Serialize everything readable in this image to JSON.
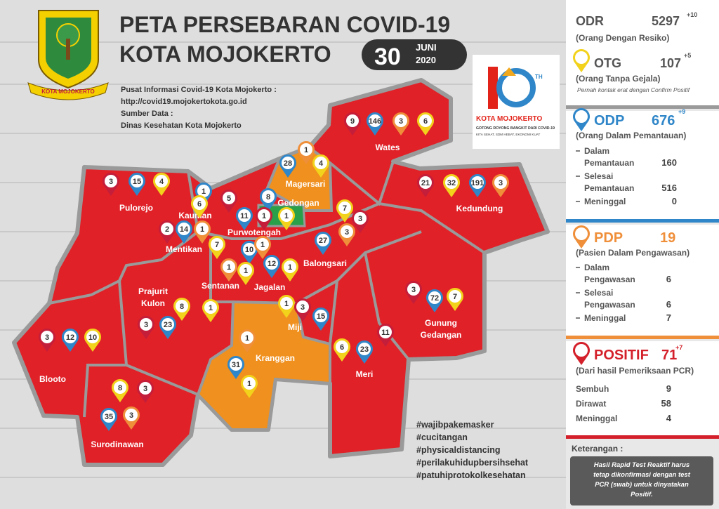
{
  "header": {
    "title": "PETA PERSEBARAN COVID-19",
    "subtitle": "KOTA MOJOKERTO",
    "date": {
      "day": "30",
      "month": "JUNI",
      "year": "2020"
    }
  },
  "logo": {
    "label": "KOTA MOJOKERTO"
  },
  "anniversary": {
    "th": "TH",
    "city": "KOTA MOJOKERTO",
    "tagline": "GOTONG ROYONG BANGKIT DARI COVID-19",
    "motto": "KITA SEHAT, SDM HEBAT, EKONOMI KUAT"
  },
  "info": {
    "center": "Pusat Informasi Covid-19 Kota Mojokerto :",
    "url": "http://covid19.mojokertokota.go.id",
    "source_label": "Sumber Data :",
    "source": "Dinas Kesehatan Kota Mojokerto"
  },
  "stats": {
    "odr": {
      "label": "ODR",
      "value": 5297,
      "change": "+10",
      "description": "(Orang Dengan Resiko)"
    },
    "otg": {
      "label": "OTG",
      "value": 107,
      "change": "+5",
      "description": "(Orang Tanpa Gejala)",
      "note": "Pernah kontak erat dengan Confirm Positif",
      "color": "#f2d21b"
    },
    "odp": {
      "label": "ODP",
      "value": 676,
      "change": "+9",
      "description": "(Orang Dalam Pemantauan)",
      "color": "#2f86c8",
      "items": [
        {
          "label": [
            "Dalam",
            "Pemantauan"
          ],
          "value": 160
        },
        {
          "label": [
            "Selesai",
            "Pemantauan"
          ],
          "value": 516
        },
        {
          "label": [
            "Meninggal"
          ],
          "value": 0
        }
      ]
    },
    "pdp": {
      "label": "PDP",
      "value": 19,
      "description": "(Pasien Dalam Pengawasan)",
      "color": "#ef8f3a",
      "items": [
        {
          "label": [
            "Dalam",
            "Pengawasan"
          ],
          "value": 6
        },
        {
          "label": [
            "Selesai",
            "Pengawasan"
          ],
          "value": 6
        },
        {
          "label": [
            "Meninggal"
          ],
          "value": 7
        }
      ]
    },
    "positif": {
      "label": "POSITIF",
      "value": 71,
      "change": "+7",
      "description": "(Dari hasil Pemeriksaan PCR)",
      "color": "#d4202a",
      "items": [
        {
          "label": [
            "Sembuh"
          ],
          "value": 9
        },
        {
          "label": [
            "Dirawat"
          ],
          "value": 58
        },
        {
          "label": [
            "Meninggal"
          ],
          "value": 4
        }
      ]
    }
  },
  "regions": [
    {
      "name": [
        "Wates"
      ],
      "pins": [
        {
          "value": 9,
          "color": "#c41e3a"
        },
        {
          "value": 146,
          "color": "#2f86c8"
        },
        {
          "value": 3,
          "color": "#ef8f3a"
        },
        {
          "value": 6,
          "color": "#f2d21b"
        }
      ]
    },
    {
      "name": [
        "Magersari"
      ],
      "pins": [
        {
          "value": 28,
          "color": "#2f86c8"
        },
        {
          "value": 1,
          "color": "#ef8f3a"
        },
        {
          "value": 4,
          "color": "#f2d21b"
        }
      ]
    },
    {
      "name": [
        "Gedongan"
      ],
      "pins": [
        {
          "value": 8,
          "color": "#2f86c8"
        }
      ]
    },
    {
      "name": [
        "Kedundung"
      ],
      "pins": [
        {
          "value": 21,
          "color": "#c41e3a"
        },
        {
          "value": 32,
          "color": "#f2d21b"
        },
        {
          "value": 191,
          "color": "#2f86c8"
        },
        {
          "value": 3,
          "color": "#ef8f3a"
        }
      ]
    },
    {
      "name": [
        "Pulorejo"
      ],
      "pins": [
        {
          "value": 3,
          "color": "#c41e3a"
        },
        {
          "value": 15,
          "color": "#2f86c8"
        },
        {
          "value": 4,
          "color": "#f2d21b"
        }
      ]
    },
    {
      "name": [
        "Kauman"
      ],
      "pins": [
        {
          "value": 1,
          "color": "#2f86c8"
        },
        {
          "value": 6,
          "color": "#f2d21b"
        },
        {
          "value": 5,
          "color": "#c41e3a"
        }
      ]
    },
    {
      "name": [
        "Purwotengah"
      ],
      "pins": [
        {
          "value": 11,
          "color": "#2f86c8"
        },
        {
          "value": 1,
          "color": "#c41e3a"
        },
        {
          "value": 1,
          "color": "#f2d21b"
        }
      ]
    },
    {
      "name": [
        "Mentikan"
      ],
      "pins": [
        {
          "value": 2,
          "color": "#c41e3a"
        },
        {
          "value": 14,
          "color": "#2f86c8"
        },
        {
          "value": 1,
          "color": "#ef8f3a"
        }
      ]
    },
    {
      "name": [
        "Sentanan"
      ],
      "pins": [
        {
          "value": 7,
          "color": "#f2d21b"
        },
        {
          "value": 10,
          "color": "#2f86c8"
        },
        {
          "value": 1,
          "color": "#ef8f3a"
        },
        {
          "value": 1,
          "color": "#ef8f3a"
        },
        {
          "value": 1,
          "color": "#f2d21b"
        }
      ]
    },
    {
      "name": [
        "Jagalan"
      ],
      "pins": [
        {
          "value": 12,
          "color": "#2f86c8"
        },
        {
          "value": 1,
          "color": "#f2d21b"
        }
      ]
    },
    {
      "name": [
        "Balongsari"
      ],
      "pins": [
        {
          "value": 7,
          "color": "#f2d21b"
        },
        {
          "value": 3,
          "color": "#c41e3a"
        },
        {
          "value": 27,
          "color": "#2f86c8"
        },
        {
          "value": 3,
          "color": "#ef8f3a"
        }
      ]
    },
    {
      "name": [
        "Prajurit",
        "Kulon"
      ],
      "pins": [
        {
          "value": 8,
          "color": "#f2d21b"
        },
        {
          "value": 3,
          "color": "#c41e3a"
        },
        {
          "value": 23,
          "color": "#2f86c8"
        },
        {
          "value": 1,
          "color": "#f2d21b"
        }
      ]
    },
    {
      "name": [
        "Miji"
      ],
      "pins": [
        {
          "value": 1,
          "color": "#f2d21b"
        },
        {
          "value": 3,
          "color": "#c41e3a"
        },
        {
          "value": 15,
          "color": "#2f86c8"
        }
      ]
    },
    {
      "name": [
        "Gunung",
        "Gedangan"
      ],
      "pins": [
        {
          "value": 3,
          "color": "#c41e3a"
        },
        {
          "value": 72,
          "color": "#2f86c8"
        },
        {
          "value": 7,
          "color": "#f2d21b"
        },
        {
          "value": 11,
          "color": "#c41e3a"
        }
      ]
    },
    {
      "name": [
        "Meri"
      ],
      "pins": [
        {
          "value": 6,
          "color": "#f2d21b"
        },
        {
          "value": 23,
          "color": "#2f86c8"
        }
      ]
    },
    {
      "name": [
        "Kranggan"
      ],
      "pins": [
        {
          "value": 1,
          "color": "#ef8f3a"
        },
        {
          "value": 31,
          "color": "#2f86c8"
        },
        {
          "value": 1,
          "color": "#f2d21b"
        }
      ]
    },
    {
      "name": [
        "Blooto"
      ],
      "pins": [
        {
          "value": 3,
          "color": "#c41e3a"
        },
        {
          "value": 12,
          "color": "#2f86c8"
        },
        {
          "value": 10,
          "color": "#f2d21b"
        }
      ]
    },
    {
      "name": [
        "Surodinawan"
      ],
      "pins": [
        {
          "value": 8,
          "color": "#f2d21b"
        },
        {
          "value": 3,
          "color": "#c41e3a"
        },
        {
          "value": 35,
          "color": "#2f86c8"
        },
        {
          "value": 3,
          "color": "#ef8f3a"
        }
      ]
    }
  ],
  "hashtags": [
    "#wajibpakemasker",
    "#cucitangan",
    "#physicaldistancing",
    "#perilakuhidupbersihsehat",
    "#patuhiprotokolkesehatan"
  ],
  "note": {
    "title": "Keterangan :",
    "lines": [
      "Hasil Rapid Test Reaktif harus",
      "tetap dikonfirmasi dengan test",
      "PCR (swab) untuk dinyatakan",
      "Positif."
    ]
  }
}
